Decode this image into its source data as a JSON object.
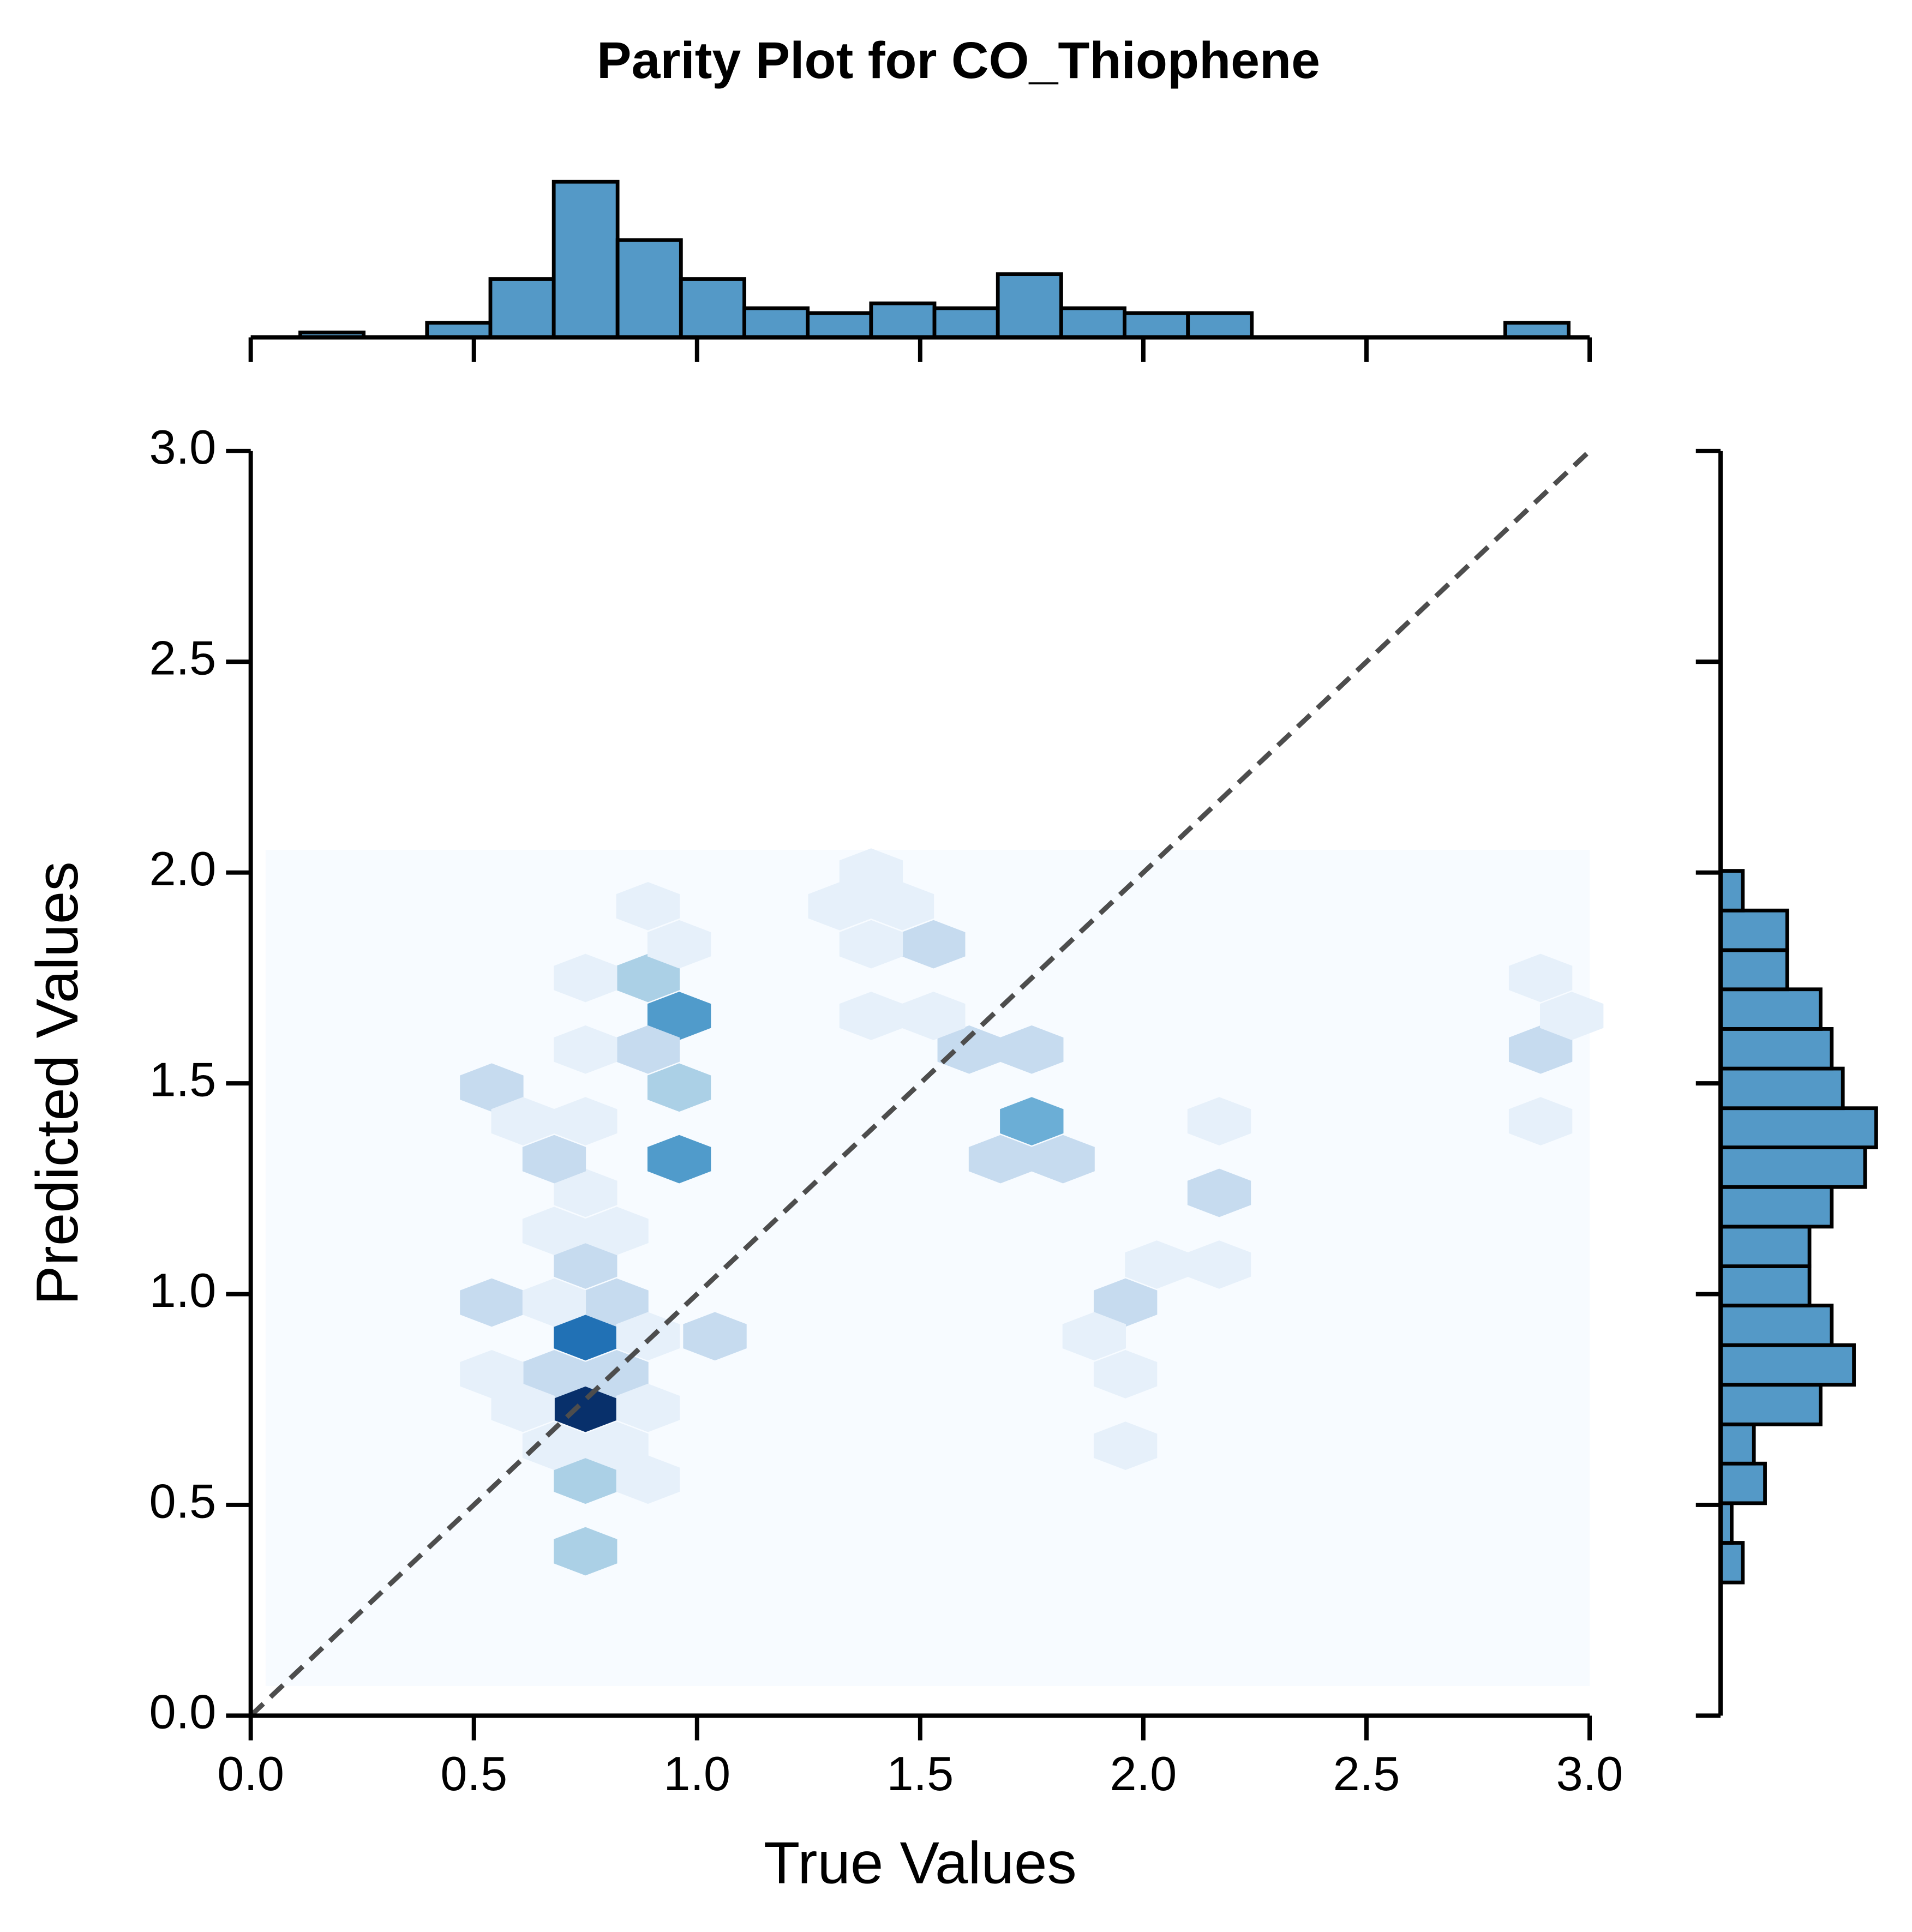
{
  "chart_data": {
    "type": "hexbin",
    "title": "Parity Plot for CO_Thiophene",
    "x_label": "True Values",
    "y_label": "Predicted Values",
    "xlim": [
      0,
      3
    ],
    "ylim": [
      0,
      3
    ],
    "xticks": [
      {
        "value": 0,
        "label": "0.0"
      },
      {
        "value": 0.5,
        "label": "0.5"
      },
      {
        "value": 1,
        "label": "1.0"
      },
      {
        "value": 1.5,
        "label": "1.5"
      },
      {
        "value": 2,
        "label": "2.0"
      },
      {
        "value": 2.5,
        "label": "2.5"
      },
      {
        "value": 3,
        "label": "3.0"
      }
    ],
    "yticks": [
      {
        "value": 0,
        "label": "0.0"
      },
      {
        "value": 0.5,
        "label": "0.5"
      },
      {
        "value": 1,
        "label": "1.0"
      },
      {
        "value": 1.5,
        "label": "1.5"
      },
      {
        "value": 2,
        "label": "2.0"
      },
      {
        "value": 2.5,
        "label": "2.5"
      },
      {
        "value": 3,
        "label": "3.0"
      }
    ],
    "cmap_colors": [
      "#f7fbff",
      "#deebf7",
      "#c6dbef",
      "#9ecae1",
      "#6baed6",
      "#4292c6",
      "#2171b5",
      "#08519c",
      "#08306b"
    ],
    "cells": {
      "x": [
        0.75,
        0.75,
        0.75,
        0.75,
        0.68,
        0.82,
        0.82,
        0.89,
        0.54,
        0.68,
        0.75,
        0.75,
        0.68,
        0.96,
        0.96,
        0.96,
        0.89,
        0.89,
        0.96,
        0.54,
        0.61,
        0.75,
        0.89,
        0.75,
        0.75,
        0.82,
        0.89,
        0.89,
        0.61,
        0.54,
        0.68,
        1.75,
        1.68,
        1.82,
        1.75,
        1.61,
        1.53,
        1.39,
        1.96,
        1.96,
        1.89,
        2.17,
        2.17,
        2.17,
        2.03,
        1.96,
        2.89,
        2.89,
        2.96,
        2.89,
        1.39,
        1.32,
        1.46,
        1.53,
        1.39,
        1.04,
        0.68,
        0.82
      ],
      "y": [
        0.73,
        0.9,
        0.56,
        0.39,
        0.81,
        0.81,
        0.98,
        0.9,
        0.98,
        0.98,
        1.07,
        1.24,
        1.32,
        1.32,
        1.49,
        1.66,
        1.75,
        1.92,
        1.83,
        1.49,
        1.41,
        1.41,
        1.58,
        1.58,
        1.75,
        0.64,
        0.56,
        0.73,
        0.73,
        0.81,
        0.64,
        1.41,
        1.32,
        1.32,
        1.58,
        1.58,
        1.66,
        1.66,
        0.98,
        0.81,
        0.9,
        1.24,
        1.41,
        1.07,
        1.07,
        0.64,
        1.75,
        1.58,
        1.66,
        1.41,
        2.0,
        1.92,
        1.92,
        1.83,
        1.83,
        0.9,
        1.15,
        1.15
      ],
      "counts": [
        12,
        9,
        4,
        4,
        3,
        3,
        3,
        1,
        3,
        1,
        3,
        1,
        3,
        7,
        4,
        7,
        4,
        1,
        1,
        3,
        1,
        1,
        3,
        1,
        1,
        1,
        1,
        1,
        1,
        1,
        1,
        6,
        3,
        3,
        3,
        3,
        1,
        1,
        3,
        1,
        1,
        3,
        1,
        1,
        1,
        1,
        1,
        3,
        1,
        1,
        1,
        1,
        1,
        3,
        1,
        3,
        1,
        1
      ]
    },
    "parity_line": {
      "x": [
        0,
        3
      ],
      "y": [
        0,
        3
      ],
      "color": "#4d4d4d"
    },
    "marginal_x": {
      "type": "histogram",
      "color": "#5499c7",
      "bins": [
        0.111,
        0.253,
        0.395,
        0.537,
        0.679,
        0.822,
        0.964,
        1.106,
        1.248,
        1.39,
        1.532,
        1.674,
        1.816,
        1.958,
        2.1,
        2.243,
        2.385,
        2.527,
        2.669,
        2.811,
        2.953
      ],
      "counts": [
        1,
        0,
        3,
        12,
        32,
        20,
        12,
        6,
        5,
        7,
        6,
        13,
        6,
        5,
        5,
        0,
        0,
        0,
        0,
        3
      ]
    },
    "marginal_y": {
      "type": "histogram",
      "color": "#5499c7",
      "bins": [
        0.129,
        0.223,
        0.316,
        0.41,
        0.504,
        0.598,
        0.691,
        0.785,
        0.879,
        0.973,
        1.066,
        1.16,
        1.254,
        1.348,
        1.441,
        1.535,
        1.629,
        1.723,
        1.816,
        1.91,
        2.004
      ],
      "counts": [
        0,
        0,
        2,
        1,
        4,
        3,
        9,
        12,
        10,
        8,
        8,
        10,
        13,
        14,
        11,
        10,
        9,
        6,
        6,
        2
      ]
    }
  }
}
